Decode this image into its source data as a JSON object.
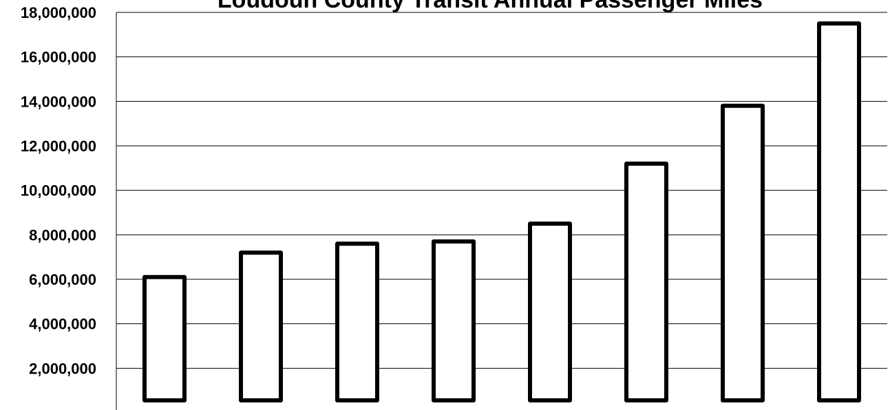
{
  "chart_data": {
    "type": "bar",
    "title": "Loudoun County Transit Annual Passenger Miles",
    "xlabel": "",
    "ylabel": "",
    "categories": [
      "",
      "",
      "",
      "",
      "",
      "",
      "",
      ""
    ],
    "values": [
      6100000,
      7200000,
      7600000,
      7700000,
      8500000,
      11200000,
      13800000,
      17500000
    ],
    "ylim": [
      0,
      18000000
    ],
    "y_ticks": [
      2000000,
      4000000,
      6000000,
      8000000,
      10000000,
      12000000,
      14000000,
      16000000,
      18000000
    ],
    "y_tick_labels": [
      "2,000,000",
      "4,000,000",
      "6,000,000",
      "8,000,000",
      "10,000,000",
      "12,000,000",
      "14,000,000",
      "16,000,000",
      "18,000,000"
    ],
    "grid": true,
    "legend": "none",
    "colors": {
      "bar_fill": "#ffffff",
      "bar_stroke": "#000000",
      "grid": "#000000",
      "text": "#000000"
    }
  }
}
